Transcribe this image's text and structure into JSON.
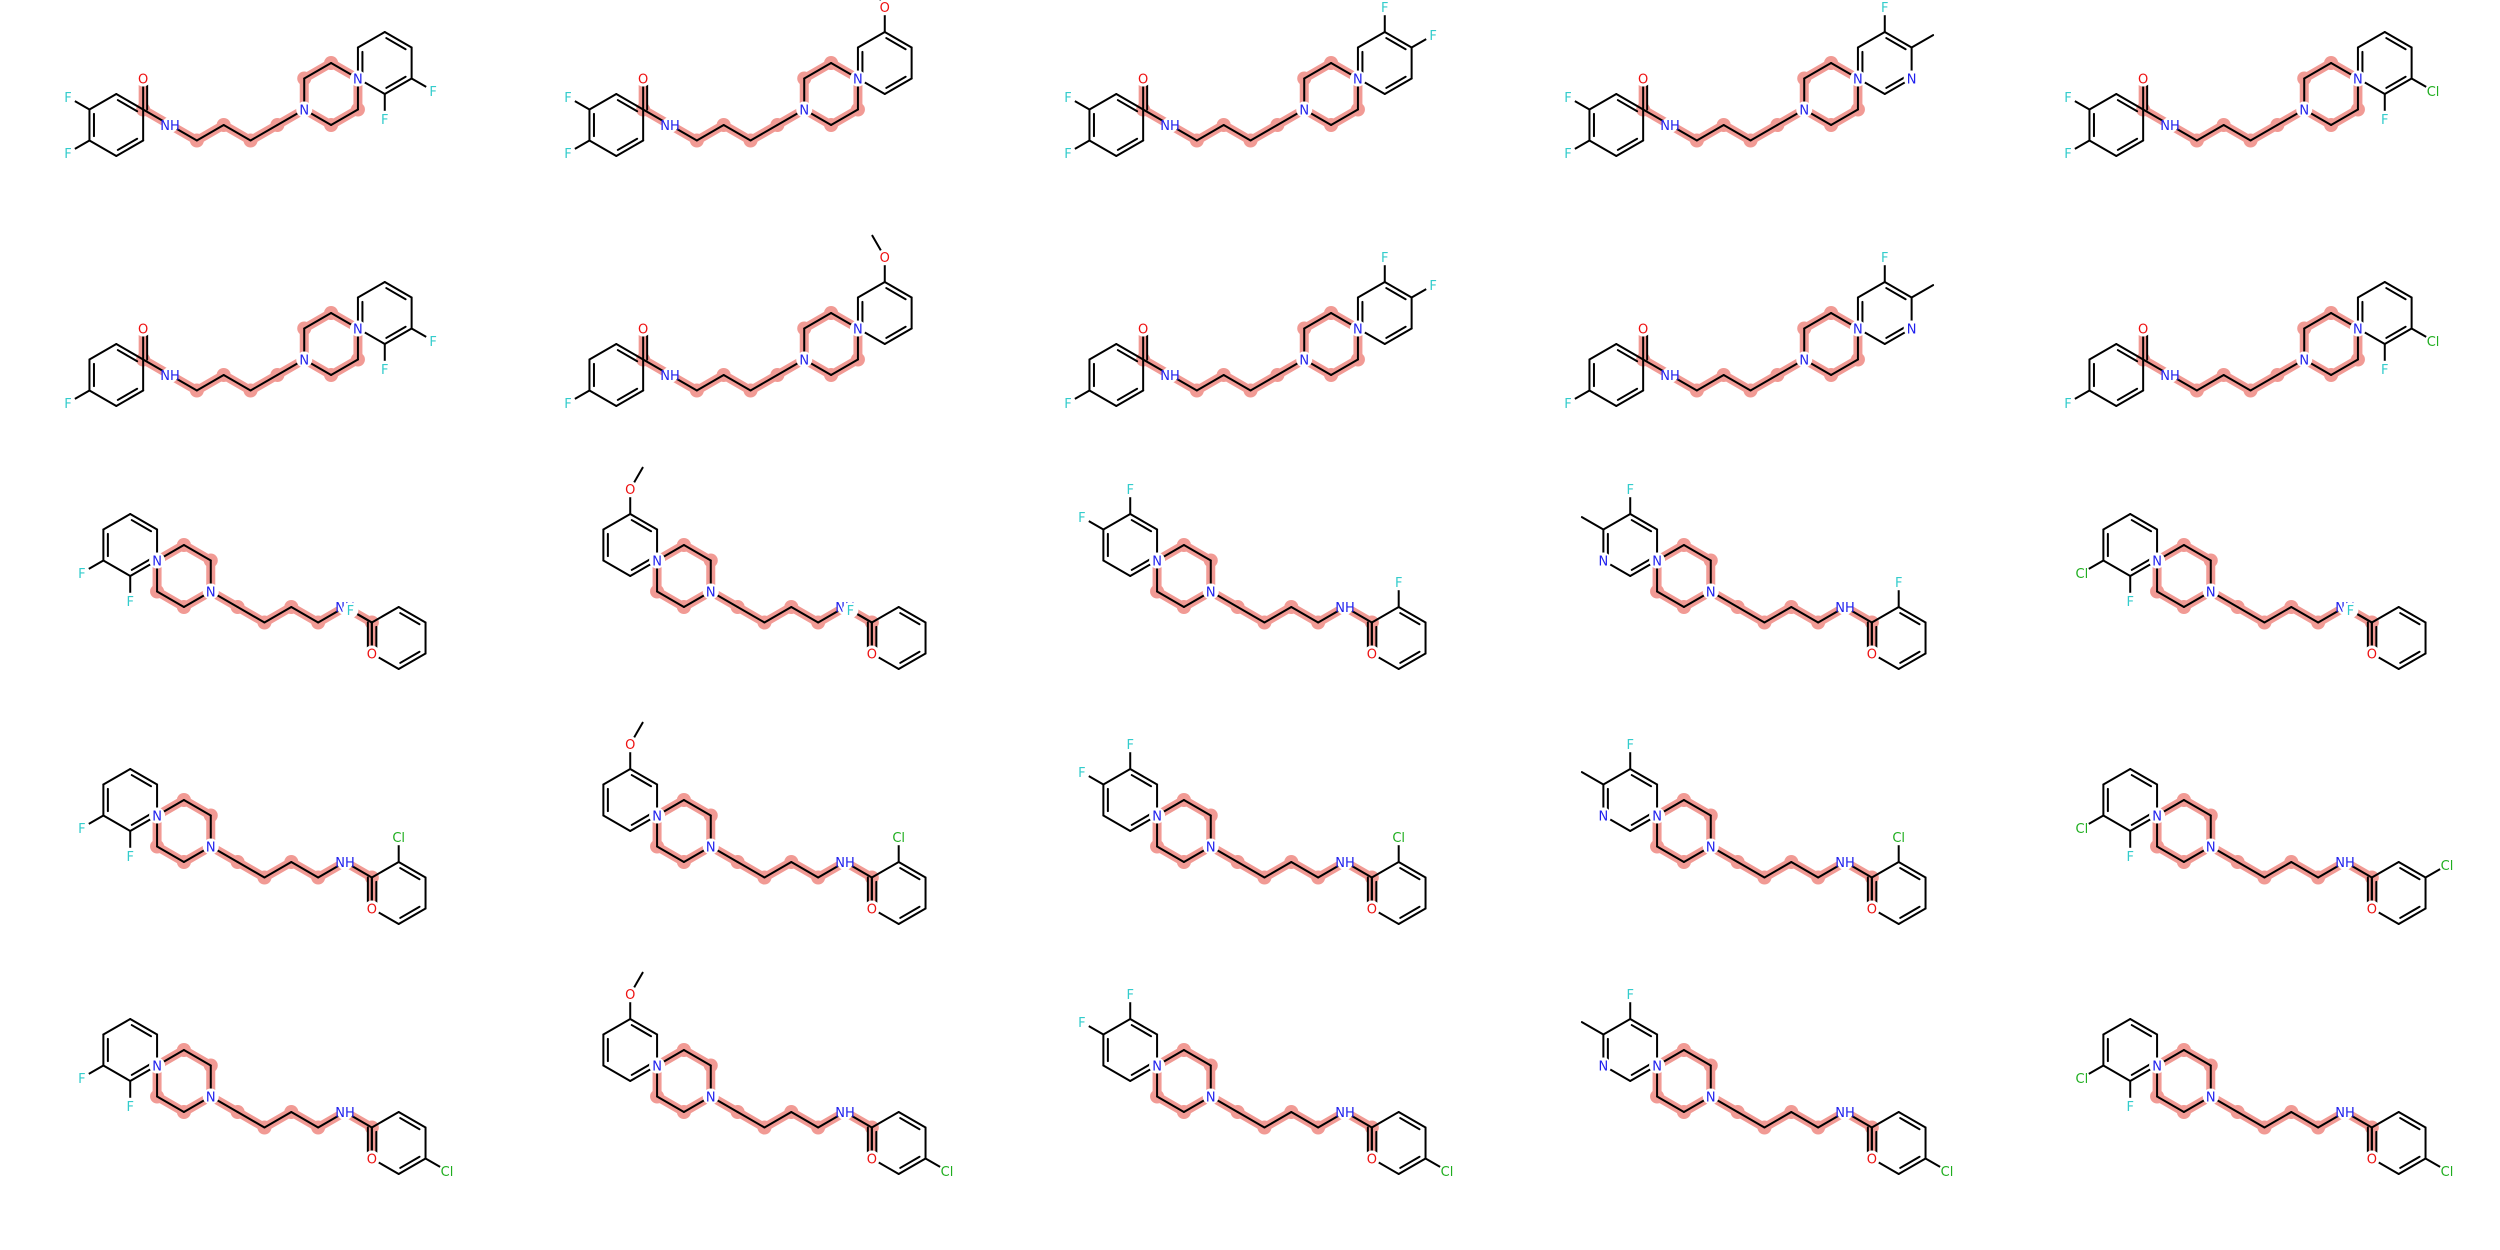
{
  "colors": {
    "bond": "#000000",
    "highlight": "#f19a94",
    "nitrogen": "#2020ee",
    "oxygen": "#ee1010",
    "fluorine": "#33cccc",
    "chlorine": "#1fae1f",
    "background": "#ffffff"
  },
  "element_labels": {
    "N": "N",
    "NH": "NH",
    "O": "O",
    "F": "F",
    "Cl": "Cl"
  },
  "rows": [
    {
      "orientation": "forward",
      "benzoyl": "3,4-difluorophenyl"
    },
    {
      "orientation": "forward",
      "benzoyl": "4-fluorophenyl"
    },
    {
      "orientation": "reverse",
      "benzoyl": "2-fluorophenyl"
    },
    {
      "orientation": "reverse",
      "benzoyl": "3-chlorophenyl"
    },
    {
      "orientation": "reverse",
      "benzoyl": "4-chlorophenyl"
    }
  ],
  "columns": [
    {
      "aryl": "2,3-difluorophenyl"
    },
    {
      "aryl": "2-methoxyphenyl"
    },
    {
      "aryl": "2,4-difluorophenyl"
    },
    {
      "aryl": "3-fluoro-2-methylpyridin-4-yl"
    },
    {
      "aryl": "3-chloro-2-fluorophenyl"
    }
  ],
  "highlighted_substructure": "piperazine-butyl-amide linker"
}
